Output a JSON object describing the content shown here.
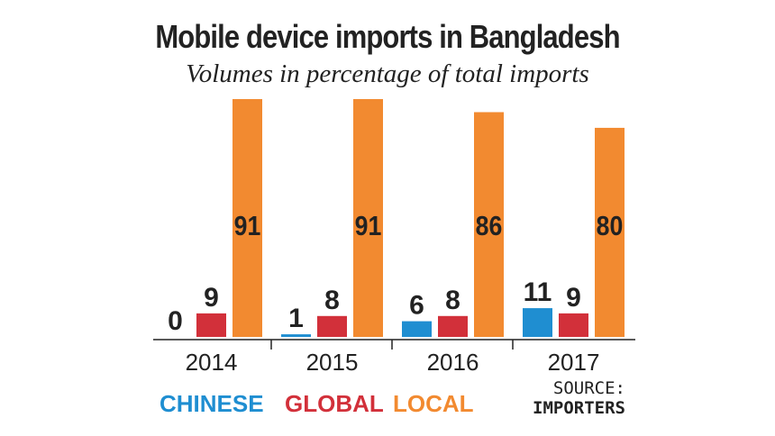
{
  "chart_data": {
    "type": "bar",
    "title": "Mobile device imports in Bangladesh",
    "subtitle": "Volumes in percentage of total imports",
    "categories": [
      "2014",
      "2015",
      "2016",
      "2017"
    ],
    "series": [
      {
        "name": "CHINESE",
        "color": "#1f8ed1",
        "values": [
          0,
          1,
          6,
          11
        ]
      },
      {
        "name": "GLOBAL",
        "color": "#d2303a",
        "values": [
          9,
          8,
          8,
          9
        ]
      },
      {
        "name": "LOCAL",
        "color": "#f28a30",
        "values": [
          91,
          91,
          86,
          80
        ]
      }
    ],
    "ylim": [
      0,
      91
    ],
    "grid": false,
    "legend_position": "bottom-left",
    "source": {
      "label": "SOURCE:",
      "value": "IMPORTERS"
    }
  }
}
